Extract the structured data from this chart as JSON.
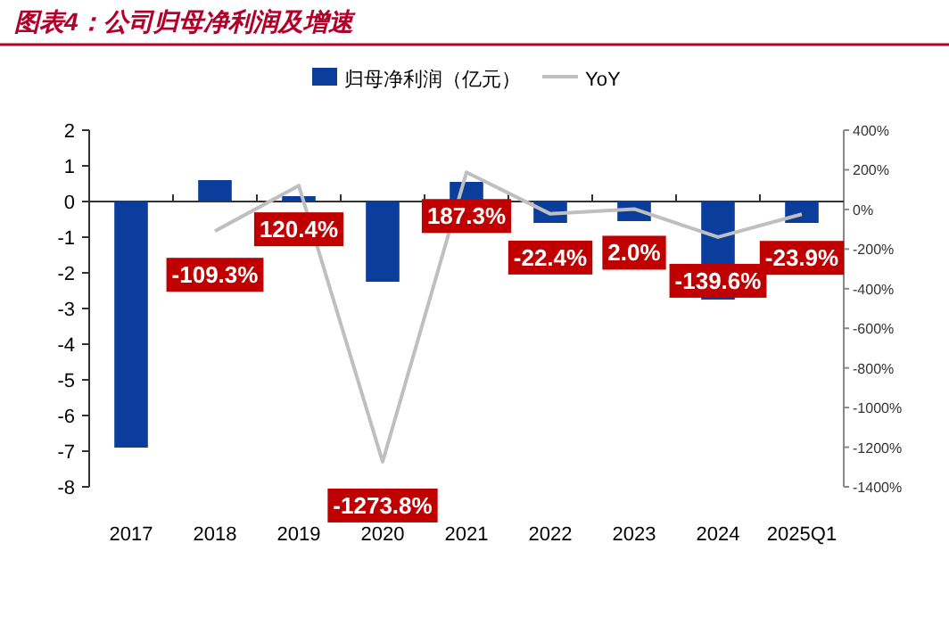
{
  "chart_data": {
    "type": "bar",
    "title": "图表4：公司归母净利润及增速",
    "categories": [
      "2017",
      "2018",
      "2019",
      "2020",
      "2021",
      "2022",
      "2023",
      "2024",
      "2025Q1"
    ],
    "series": [
      {
        "name": "归母净利润（亿元）",
        "color": "#0a3d9c",
        "values": [
          -6.9,
          0.6,
          0.15,
          -2.25,
          0.55,
          -0.6,
          -0.55,
          -2.75,
          -0.6
        ]
      },
      {
        "name": "YoY",
        "type": "line",
        "axis": "y2",
        "color": "#bfbfbf",
        "values": [
          null,
          -109.3,
          120.4,
          -1273.8,
          187.3,
          -22.4,
          2.0,
          -139.6,
          -23.9
        ],
        "value_labels": [
          null,
          "-109.3%",
          "120.4%",
          "-1273.8%",
          "187.3%",
          "-22.4%",
          "2.0%",
          "-139.6%",
          "-23.9%"
        ]
      }
    ],
    "ylim": [
      -8,
      2
    ],
    "yticks": [
      -8,
      -7,
      -6,
      -5,
      -4,
      -3,
      -2,
      -1,
      0,
      1,
      2
    ],
    "y2lim": [
      -1400,
      400
    ],
    "y2ticks": [
      {
        "value": -1400,
        "label": "-1400%"
      },
      {
        "value": -1200,
        "label": "-1200%"
      },
      {
        "value": -1000,
        "label": "-1000%"
      },
      {
        "value": -800,
        "label": "-800%"
      },
      {
        "value": -600,
        "label": "-600%"
      },
      {
        "value": -400,
        "label": "-400%"
      },
      {
        "value": -200,
        "label": "-200%"
      },
      {
        "value": 0,
        "label": "0%"
      },
      {
        "value": 200,
        "label": "200%"
      },
      {
        "value": 400,
        "label": "400%"
      }
    ],
    "legend": "top"
  }
}
